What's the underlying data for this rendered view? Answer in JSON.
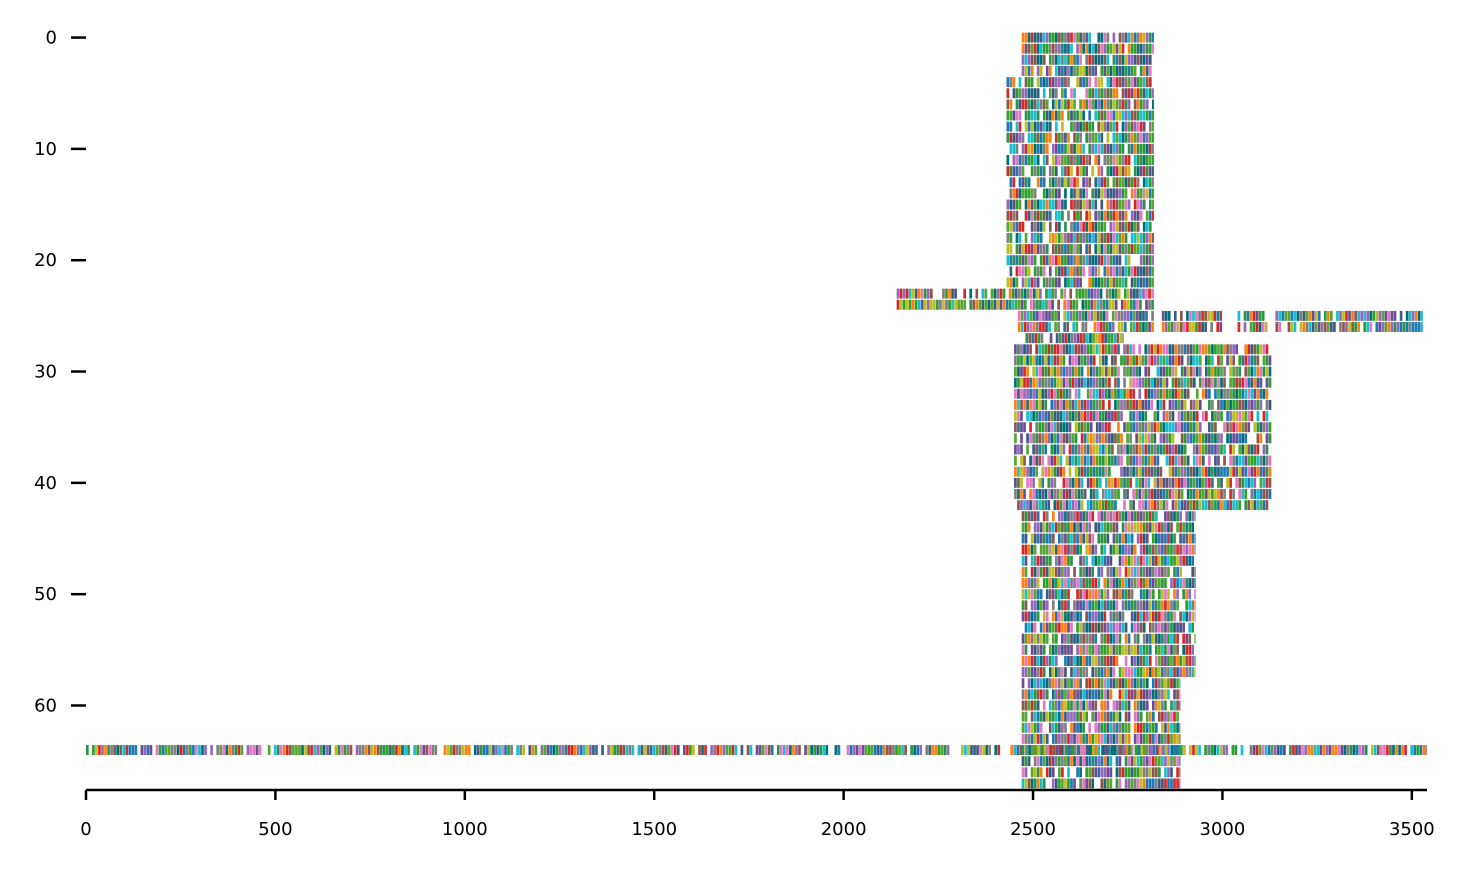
{
  "chart_data": {
    "type": "heatmap",
    "title": "",
    "xlabel": "",
    "ylabel": "",
    "xlim": [
      0,
      3540
    ],
    "ylim": [
      -0.5,
      67.5
    ],
    "y_inverted": true,
    "grid": false,
    "legend": "none",
    "x_ticks": [
      0,
      500,
      1000,
      1500,
      2000,
      2500,
      3000,
      3500
    ],
    "y_ticks": [
      0,
      10,
      20,
      30,
      40,
      50,
      60
    ],
    "x_tick_labels": [
      "0",
      "500",
      "1000",
      "1500",
      "2000",
      "2500",
      "3000",
      "3500"
    ],
    "y_tick_labels": [
      "0",
      "10",
      "20",
      "30",
      "40",
      "50",
      "60"
    ],
    "palette": [
      "#1f77b4",
      "#2ca02c",
      "#d62728",
      "#9467bd",
      "#8c564b",
      "#e377c2",
      "#7f7f7f",
      "#bcbd22",
      "#17becf",
      "#ff7f0e",
      "#006d77",
      "#3d5a80",
      "#6a4c93",
      "#2b9348",
      "#55a630"
    ],
    "row_blocks": [
      {
        "rows": [
          0,
          3
        ],
        "segments": [
          [
            2470,
            2820
          ]
        ]
      },
      {
        "rows": [
          4,
          22
        ],
        "segments": [
          [
            2430,
            2820
          ]
        ]
      },
      {
        "rows": [
          23,
          24
        ],
        "segments": [
          [
            2140,
            2820
          ]
        ]
      },
      {
        "rows": [
          25,
          26
        ],
        "segments": [
          [
            2460,
            2820
          ],
          [
            2840,
            3000
          ],
          [
            3040,
            3120
          ],
          [
            3140,
            3530
          ]
        ]
      },
      {
        "rows": [
          27,
          27
        ],
        "segments": [
          [
            2480,
            2740
          ]
        ]
      },
      {
        "rows": [
          28,
          42
        ],
        "segments": [
          [
            2450,
            3130
          ]
        ]
      },
      {
        "rows": [
          43,
          57
        ],
        "segments": [
          [
            2470,
            2930
          ]
        ]
      },
      {
        "rows": [
          58,
          67
        ],
        "segments": [
          [
            2470,
            2890
          ]
        ]
      },
      {
        "rows": [
          64,
          64
        ],
        "segments": [
          [
            0,
            2280
          ],
          [
            2310,
            2420
          ],
          [
            2440,
            3540
          ]
        ]
      }
    ]
  }
}
